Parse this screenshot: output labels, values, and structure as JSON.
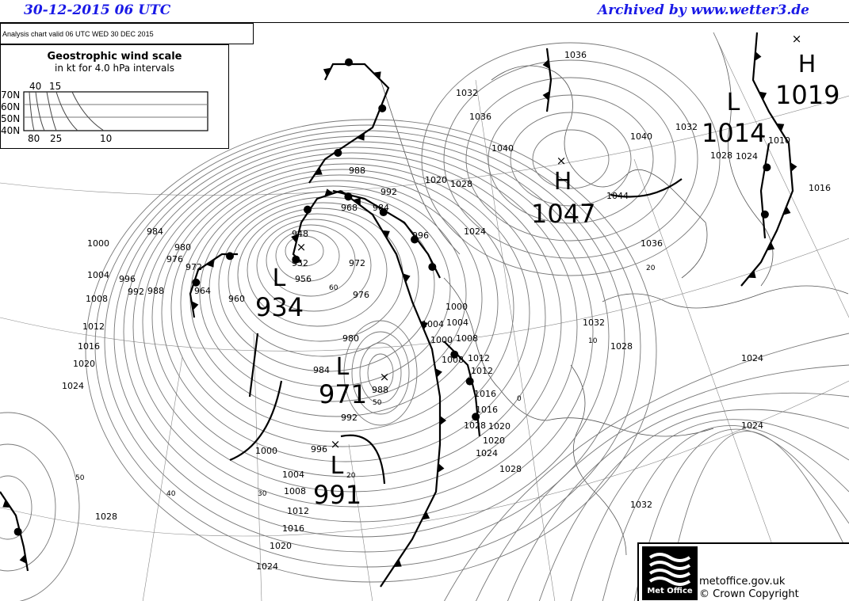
{
  "header": {
    "date": "30-12-2015  06 UTC",
    "archive": "Archived by www.wetter3.de"
  },
  "chart": {
    "valid": "Analysis chart  valid 06 UTC WED 30  DEC 2015"
  },
  "wind_scale": {
    "title": "Geostrophic wind scale",
    "subtitle": "in kt for 4.0 hPa intervals",
    "latitudes": [
      "70N",
      "60N",
      "50N",
      "40N"
    ],
    "top_labels": [
      "40",
      "15"
    ],
    "bottom_labels": [
      "80",
      "25",
      "10"
    ]
  },
  "pressure_centres": [
    {
      "type": "H",
      "value": "1019"
    },
    {
      "type": "L",
      "value": "1014"
    },
    {
      "type": "H",
      "value": "1047"
    },
    {
      "type": "L",
      "value": "934"
    },
    {
      "type": "L",
      "value": "971"
    },
    {
      "type": "L",
      "value": "991"
    }
  ],
  "isobar_labels": [
    "1036",
    "1032",
    "1036",
    "1040",
    "1040",
    "1032",
    "1028",
    "1024",
    "1016",
    "1004",
    "1008",
    "1000",
    "1012",
    "1016",
    "1020",
    "1028",
    "1024",
    "988",
    "992",
    "968",
    "984",
    "996",
    "972",
    "976",
    "980",
    "984",
    "988",
    "992",
    "996",
    "1000",
    "1004",
    "1008",
    "1012",
    "1016",
    "1020",
    "1024",
    "1028",
    "1044",
    "1036",
    "1032",
    "1028",
    "1024",
    "1028",
    "1024",
    "1032",
    "1020",
    "1024",
    "1028",
    "1000",
    "1004",
    "1008",
    "1012",
    "1016",
    "1020",
    "1024",
    "984",
    "980",
    "976",
    "972",
    "964",
    "960",
    "996",
    "992",
    "988",
    "948",
    "952",
    "956",
    "1004",
    "1000",
    "1008",
    "1012",
    "1016",
    "1020",
    "1010"
  ],
  "latitude_labels": [
    "50",
    "40",
    "30",
    "20",
    "50",
    "60",
    "20",
    "10",
    "0"
  ],
  "colors": {
    "header": "#1a1ae6",
    "isobar": "#777777",
    "front": "#000000"
  },
  "footer": {
    "site": "metoffice.gov.uk",
    "copyright": "© Crown Copyright",
    "logo_text": "Met Office"
  }
}
